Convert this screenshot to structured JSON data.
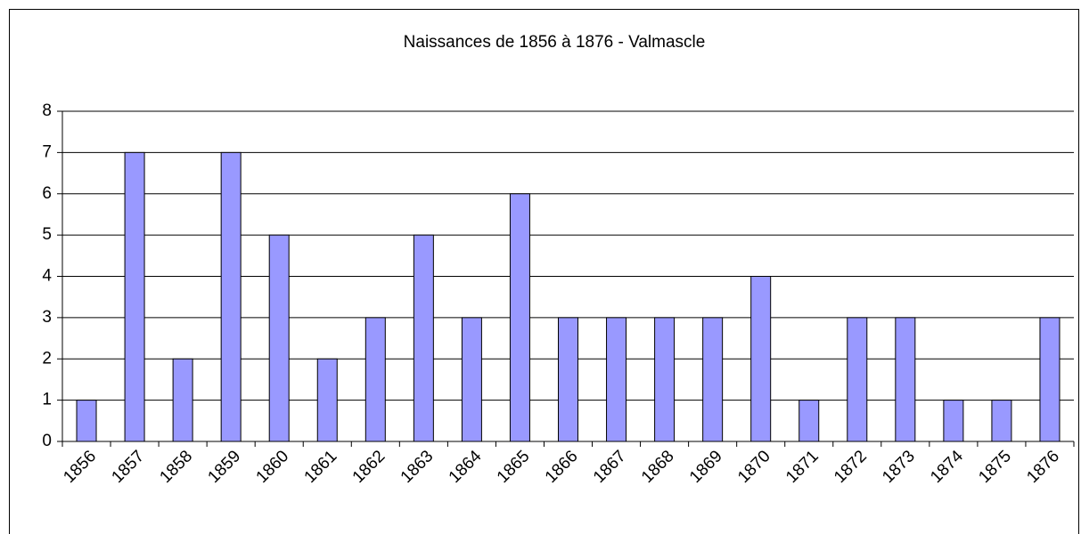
{
  "chart_data": {
    "type": "bar",
    "title": "Naissances de 1856 à 1876 - Valmascle",
    "categories": [
      "1856",
      "1857",
      "1858",
      "1859",
      "1860",
      "1861",
      "1862",
      "1863",
      "1864",
      "1865",
      "1866",
      "1867",
      "1868",
      "1869",
      "1870",
      "1871",
      "1872",
      "1873",
      "1874",
      "1875",
      "1876"
    ],
    "values": [
      1,
      7,
      2,
      7,
      5,
      2,
      3,
      5,
      3,
      6,
      3,
      3,
      3,
      3,
      4,
      1,
      3,
      3,
      1,
      1,
      3
    ],
    "color": "#9999ff",
    "ylim": [
      0,
      8
    ],
    "yticks": [
      0,
      1,
      2,
      3,
      4,
      5,
      6,
      7,
      8
    ],
    "grid": true
  }
}
